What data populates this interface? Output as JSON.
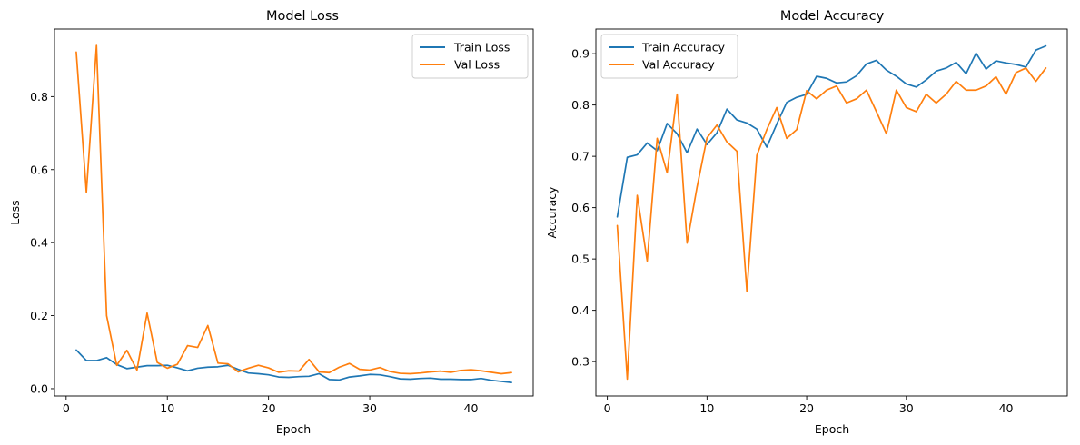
{
  "chart_data": [
    {
      "type": "line",
      "title": "Model Loss",
      "xlabel": "Epoch",
      "ylabel": "Loss",
      "xlim": [
        -1.15,
        46.15
      ],
      "ylim": [
        -0.02,
        0.985
      ],
      "xticks": [
        0,
        10,
        20,
        30,
        40
      ],
      "yticks": [
        0.0,
        0.2,
        0.4,
        0.6,
        0.8
      ],
      "ytick_labels": [
        "0.0",
        "0.2",
        "0.4",
        "0.6",
        "0.8"
      ],
      "grid": false,
      "legend_position": "top-right",
      "x": [
        1,
        2,
        3,
        4,
        5,
        6,
        7,
        8,
        9,
        10,
        11,
        12,
        13,
        14,
        15,
        16,
        17,
        18,
        19,
        20,
        21,
        22,
        23,
        24,
        25,
        26,
        27,
        28,
        29,
        30,
        31,
        32,
        33,
        34,
        35,
        36,
        37,
        38,
        39,
        40,
        41,
        42,
        43,
        44
      ],
      "series": [
        {
          "name": "Train Loss",
          "color": "#1f77b4",
          "values": [
            0.106,
            0.077,
            0.077,
            0.085,
            0.066,
            0.055,
            0.059,
            0.063,
            0.063,
            0.064,
            0.057,
            0.049,
            0.056,
            0.059,
            0.06,
            0.064,
            0.053,
            0.043,
            0.041,
            0.038,
            0.032,
            0.031,
            0.033,
            0.034,
            0.041,
            0.025,
            0.024,
            0.032,
            0.035,
            0.039,
            0.038,
            0.033,
            0.027,
            0.026,
            0.028,
            0.029,
            0.026,
            0.026,
            0.025,
            0.025,
            0.028,
            0.023,
            0.02,
            0.017
          ]
        },
        {
          "name": "Val Loss",
          "color": "#ff7f0e",
          "values": [
            0.922,
            0.538,
            0.94,
            0.2,
            0.064,
            0.105,
            0.051,
            0.207,
            0.072,
            0.056,
            0.067,
            0.118,
            0.113,
            0.173,
            0.07,
            0.068,
            0.046,
            0.056,
            0.064,
            0.057,
            0.045,
            0.049,
            0.048,
            0.08,
            0.046,
            0.044,
            0.059,
            0.069,
            0.053,
            0.051,
            0.058,
            0.047,
            0.042,
            0.041,
            0.043,
            0.046,
            0.048,
            0.045,
            0.05,
            0.052,
            0.049,
            0.045,
            0.041,
            0.044
          ]
        }
      ]
    },
    {
      "type": "line",
      "title": "Model Accuracy",
      "xlabel": "Epoch",
      "ylabel": "Accuracy",
      "xlim": [
        -1.15,
        46.15
      ],
      "ylim": [
        0.233,
        0.948
      ],
      "xticks": [
        0,
        10,
        20,
        30,
        40
      ],
      "yticks": [
        0.3,
        0.4,
        0.5,
        0.6,
        0.7,
        0.8,
        0.9
      ],
      "ytick_labels": [
        "0.3",
        "0.4",
        "0.5",
        "0.6",
        "0.7",
        "0.8",
        "0.9"
      ],
      "grid": false,
      "legend_position": "top-left",
      "x": [
        1,
        2,
        3,
        4,
        5,
        6,
        7,
        8,
        9,
        10,
        11,
        12,
        13,
        14,
        15,
        16,
        17,
        18,
        19,
        20,
        21,
        22,
        23,
        24,
        25,
        26,
        27,
        28,
        29,
        30,
        31,
        32,
        33,
        34,
        35,
        36,
        37,
        38,
        39,
        40,
        41,
        42,
        43,
        44
      ],
      "series": [
        {
          "name": "Train Accuracy",
          "color": "#1f77b4",
          "values": [
            0.582,
            0.698,
            0.703,
            0.726,
            0.711,
            0.764,
            0.744,
            0.707,
            0.753,
            0.723,
            0.746,
            0.792,
            0.771,
            0.765,
            0.753,
            0.718,
            0.763,
            0.805,
            0.815,
            0.821,
            0.856,
            0.852,
            0.843,
            0.845,
            0.857,
            0.88,
            0.887,
            0.868,
            0.856,
            0.841,
            0.835,
            0.849,
            0.866,
            0.872,
            0.883,
            0.861,
            0.901,
            0.87,
            0.886,
            0.882,
            0.879,
            0.874,
            0.907,
            0.915
          ]
        },
        {
          "name": "Val Accuracy",
          "color": "#ff7f0e",
          "values": [
            0.565,
            0.266,
            0.624,
            0.496,
            0.735,
            0.668,
            0.821,
            0.531,
            0.64,
            0.736,
            0.761,
            0.728,
            0.71,
            0.437,
            0.702,
            0.752,
            0.795,
            0.735,
            0.752,
            0.828,
            0.812,
            0.829,
            0.837,
            0.804,
            0.812,
            0.829,
            0.787,
            0.744,
            0.829,
            0.795,
            0.787,
            0.821,
            0.804,
            0.821,
            0.846,
            0.829,
            0.829,
            0.837,
            0.855,
            0.821,
            0.863,
            0.872,
            0.846,
            0.872
          ]
        }
      ]
    }
  ]
}
